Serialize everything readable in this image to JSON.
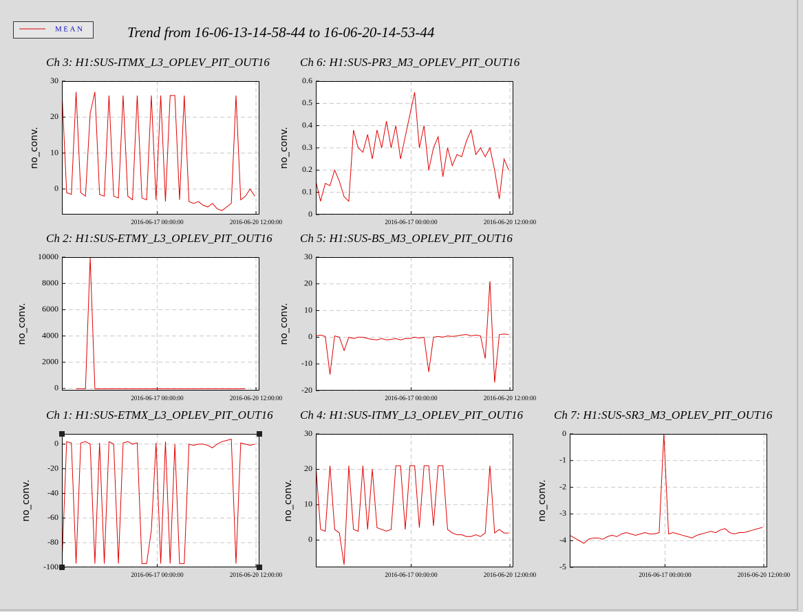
{
  "title": "Trend from 16-06-13-14-58-44 to 16-06-20-14-53-44",
  "chart_data": [
    {
      "type": "line",
      "title": "Ch 3: H1:SUS-ITMX_L3_OPLEV_PIT_OUT16",
      "ylabel": "no_conv.",
      "x": [
        "2016-06-13 15:00:00",
        "2016-06-13 19:00:00",
        "2016-06-13 23:00:00",
        "2016-06-14 03:00:00",
        "2016-06-14 07:00:00",
        "2016-06-14 11:00:00",
        "2016-06-14 15:00:00",
        "2016-06-14 19:00:00",
        "2016-06-14 23:00:00",
        "2016-06-15 03:00:00",
        "2016-06-15 07:00:00",
        "2016-06-15 11:00:00",
        "2016-06-15 15:00:00",
        "2016-06-15 19:00:00",
        "2016-06-15 23:00:00",
        "2016-06-16 03:00:00",
        "2016-06-16 07:00:00",
        "2016-06-16 11:00:00",
        "2016-06-16 15:00:00",
        "2016-06-16 19:00:00",
        "2016-06-16 23:00:00",
        "2016-06-17 03:00:00",
        "2016-06-17 07:00:00",
        "2016-06-17 11:00:00",
        "2016-06-17 15:00:00",
        "2016-06-17 19:00:00",
        "2016-06-17 23:00:00",
        "2016-06-18 03:00:00",
        "2016-06-18 07:00:00",
        "2016-06-18 11:00:00",
        "2016-06-18 15:00:00",
        "2016-06-18 19:00:00",
        "2016-06-18 23:00:00",
        "2016-06-19 03:00:00",
        "2016-06-19 07:00:00",
        "2016-06-19 11:00:00",
        "2016-06-19 15:00:00",
        "2016-06-19 19:00:00",
        "2016-06-19 23:00:00",
        "2016-06-20 03:00:00",
        "2016-06-20 07:00:00",
        "2016-06-20 11:00:00"
      ],
      "series": [
        {
          "name": "MEAN",
          "color": "#e00000",
          "values": [
            27,
            -1,
            -1.5,
            27,
            -1,
            -2,
            21,
            27,
            -1.5,
            -2,
            26,
            -2,
            -2.5,
            26,
            -2,
            -3,
            26,
            -2.5,
            -3,
            26,
            -3,
            26,
            -3.5,
            26,
            26,
            -3,
            26,
            -3.5,
            -4,
            -3.5,
            -4.5,
            -5,
            -4,
            -5.5,
            -6,
            -5,
            -4,
            26,
            -3,
            -2,
            0,
            -2
          ]
        }
      ],
      "xlim": [
        "2016-06-13 14:58:44",
        "2016-06-20 14:53:44"
      ],
      "xticks": [
        "2016-06-17 00:00:00",
        "2016-06-20 12:00:00"
      ],
      "ylim": [
        -7.1,
        30
      ],
      "yticks": [
        0,
        10,
        20,
        30
      ],
      "grid": true
    },
    {
      "type": "line",
      "title": "Ch 6: H1:SUS-PR3_M3_OPLEV_PIT_OUT16",
      "ylabel": "no_conv.",
      "x": [
        "2016-06-13 15:00:00",
        "2016-06-13 19:00:00",
        "2016-06-13 23:00:00",
        "2016-06-14 03:00:00",
        "2016-06-14 07:00:00",
        "2016-06-14 11:00:00",
        "2016-06-14 15:00:00",
        "2016-06-14 19:00:00",
        "2016-06-14 23:00:00",
        "2016-06-15 03:00:00",
        "2016-06-15 07:00:00",
        "2016-06-15 11:00:00",
        "2016-06-15 15:00:00",
        "2016-06-15 19:00:00",
        "2016-06-15 23:00:00",
        "2016-06-16 03:00:00",
        "2016-06-16 07:00:00",
        "2016-06-16 11:00:00",
        "2016-06-16 15:00:00",
        "2016-06-16 19:00:00",
        "2016-06-16 23:00:00",
        "2016-06-17 03:00:00",
        "2016-06-17 07:00:00",
        "2016-06-17 11:00:00",
        "2016-06-17 15:00:00",
        "2016-06-17 19:00:00",
        "2016-06-17 23:00:00",
        "2016-06-18 03:00:00",
        "2016-06-18 07:00:00",
        "2016-06-18 11:00:00",
        "2016-06-18 15:00:00",
        "2016-06-18 19:00:00",
        "2016-06-18 23:00:00",
        "2016-06-19 03:00:00",
        "2016-06-19 07:00:00",
        "2016-06-19 11:00:00",
        "2016-06-19 15:00:00",
        "2016-06-19 19:00:00",
        "2016-06-19 23:00:00",
        "2016-06-20 03:00:00",
        "2016-06-20 07:00:00",
        "2016-06-20 11:00:00"
      ],
      "series": [
        {
          "name": "MEAN",
          "color": "#e00000",
          "values": [
            0.15,
            0.06,
            0.14,
            0.13,
            0.2,
            0.15,
            0.08,
            0.06,
            0.38,
            0.3,
            0.28,
            0.36,
            0.25,
            0.38,
            0.3,
            0.42,
            0.3,
            0.4,
            0.25,
            0.35,
            0.45,
            0.55,
            0.3,
            0.4,
            0.2,
            0.3,
            0.35,
            0.17,
            0.3,
            0.22,
            0.27,
            0.26,
            0.33,
            0.38,
            0.27,
            0.3,
            0.26,
            0.3,
            0.2,
            0.07,
            0.25,
            0.2
          ]
        }
      ],
      "xlim": [
        "2016-06-13 14:58:44",
        "2016-06-20 14:53:44"
      ],
      "xticks": [
        "2016-06-17 00:00:00",
        "2016-06-20 12:00:00"
      ],
      "ylim": [
        0,
        0.6
      ],
      "yticks": [
        0,
        0.1,
        0.2,
        0.3,
        0.4,
        0.5,
        0.6
      ],
      "grid": true
    },
    {
      "type": "line",
      "title": "Ch 2: H1:SUS-ETMY_L3_OPLEV_PIT_OUT16",
      "ylabel": "no_conv.",
      "x": [
        "2016-06-13 15:00:00",
        "2016-06-13 19:00:00",
        "2016-06-13 23:00:00",
        "2016-06-14 03:00:00",
        "2016-06-14 07:00:00",
        "2016-06-14 11:00:00",
        "2016-06-14 15:00:00",
        "2016-06-14 19:00:00",
        "2016-06-14 23:00:00",
        "2016-06-15 03:00:00",
        "2016-06-15 07:00:00",
        "2016-06-15 11:00:00",
        "2016-06-15 15:00:00",
        "2016-06-15 19:00:00",
        "2016-06-15 23:00:00",
        "2016-06-16 03:00:00",
        "2016-06-16 07:00:00",
        "2016-06-16 11:00:00",
        "2016-06-16 15:00:00",
        "2016-06-16 19:00:00",
        "2016-06-16 23:00:00",
        "2016-06-17 03:00:00",
        "2016-06-17 07:00:00",
        "2016-06-17 11:00:00",
        "2016-06-17 15:00:00",
        "2016-06-17 19:00:00",
        "2016-06-17 23:00:00",
        "2016-06-18 03:00:00",
        "2016-06-18 07:00:00",
        "2016-06-18 11:00:00",
        "2016-06-18 15:00:00",
        "2016-06-18 19:00:00",
        "2016-06-18 23:00:00",
        "2016-06-19 03:00:00",
        "2016-06-19 07:00:00",
        "2016-06-19 11:00:00",
        "2016-06-19 15:00:00",
        "2016-06-19 19:00:00",
        "2016-06-19 23:00:00",
        "2016-06-20 03:00:00",
        "2016-06-20 07:00:00",
        "2016-06-20 11:00:00"
      ],
      "series": [
        {
          "name": "MEAN",
          "color": "#e00000",
          "values": [
            null,
            null,
            null,
            -20,
            -20,
            -20,
            10000,
            -30,
            -30,
            -30,
            -30,
            -30,
            -30,
            -30,
            -30,
            -30,
            -30,
            -30,
            -30,
            -30,
            -30,
            -30,
            -30,
            -30,
            -30,
            -30,
            -30,
            -30,
            -30,
            -30,
            -30,
            -30,
            -30,
            -30,
            -30,
            -30,
            -30,
            -30,
            -30,
            -20,
            null,
            null
          ]
        }
      ],
      "xlim": [
        "2016-06-13 14:58:44",
        "2016-06-20 14:53:44"
      ],
      "xticks": [
        "2016-06-17 00:00:00",
        "2016-06-20 12:00:00"
      ],
      "ylim": [
        -158,
        10000
      ],
      "yticks": [
        0,
        2000,
        4000,
        6000,
        8000,
        10000
      ],
      "grid": true
    },
    {
      "type": "line",
      "title": "Ch 5: H1:SUS-BS_M3_OPLEV_PIT_OUT16",
      "ylabel": "no_conv.",
      "x": [
        "2016-06-13 15:00:00",
        "2016-06-13 19:00:00",
        "2016-06-13 23:00:00",
        "2016-06-14 03:00:00",
        "2016-06-14 07:00:00",
        "2016-06-14 11:00:00",
        "2016-06-14 15:00:00",
        "2016-06-14 19:00:00",
        "2016-06-14 23:00:00",
        "2016-06-15 03:00:00",
        "2016-06-15 07:00:00",
        "2016-06-15 11:00:00",
        "2016-06-15 15:00:00",
        "2016-06-15 19:00:00",
        "2016-06-15 23:00:00",
        "2016-06-16 03:00:00",
        "2016-06-16 07:00:00",
        "2016-06-16 11:00:00",
        "2016-06-16 15:00:00",
        "2016-06-16 19:00:00",
        "2016-06-16 23:00:00",
        "2016-06-17 03:00:00",
        "2016-06-17 07:00:00",
        "2016-06-17 11:00:00",
        "2016-06-17 15:00:00",
        "2016-06-17 19:00:00",
        "2016-06-17 23:00:00",
        "2016-06-18 03:00:00",
        "2016-06-18 07:00:00",
        "2016-06-18 11:00:00",
        "2016-06-18 15:00:00",
        "2016-06-18 19:00:00",
        "2016-06-18 23:00:00",
        "2016-06-19 03:00:00",
        "2016-06-19 07:00:00",
        "2016-06-19 11:00:00",
        "2016-06-19 15:00:00",
        "2016-06-19 19:00:00",
        "2016-06-19 23:00:00",
        "2016-06-20 03:00:00",
        "2016-06-20 07:00:00",
        "2016-06-20 11:00:00"
      ],
      "series": [
        {
          "name": "MEAN",
          "color": "#e00000",
          "values": [
            0.5,
            0.8,
            0.3,
            -14,
            0.5,
            0,
            -5,
            0,
            -0.5,
            0,
            0,
            -0.5,
            -0.8,
            -1,
            -0.5,
            -1,
            -0.8,
            -0.5,
            -1,
            -0.5,
            -0.5,
            0,
            -0.3,
            0,
            -13,
            0,
            0.3,
            0,
            0.5,
            0.3,
            0.5,
            0.8,
            1,
            0.5,
            0.8,
            0.5,
            -8,
            21,
            -17,
            1,
            1.2,
            1
          ]
        }
      ],
      "xlim": [
        "2016-06-13 14:58:44",
        "2016-06-20 14:53:44"
      ],
      "xticks": [
        "2016-06-17 00:00:00",
        "2016-06-20 12:00:00"
      ],
      "ylim": [
        -20,
        30
      ],
      "yticks": [
        -20,
        -10,
        0,
        10,
        20,
        30
      ],
      "grid": true
    },
    {
      "type": "line",
      "title": "Ch 1: H1:SUS-ETMX_L3_OPLEV_PIT_OUT16",
      "ylabel": "no_conv.",
      "x": [
        "2016-06-13 15:00:00",
        "2016-06-13 19:00:00",
        "2016-06-13 23:00:00",
        "2016-06-14 03:00:00",
        "2016-06-14 07:00:00",
        "2016-06-14 11:00:00",
        "2016-06-14 15:00:00",
        "2016-06-14 19:00:00",
        "2016-06-14 23:00:00",
        "2016-06-15 03:00:00",
        "2016-06-15 07:00:00",
        "2016-06-15 11:00:00",
        "2016-06-15 15:00:00",
        "2016-06-15 19:00:00",
        "2016-06-15 23:00:00",
        "2016-06-16 03:00:00",
        "2016-06-16 07:00:00",
        "2016-06-16 11:00:00",
        "2016-06-16 15:00:00",
        "2016-06-16 19:00:00",
        "2016-06-16 23:00:00",
        "2016-06-17 03:00:00",
        "2016-06-17 07:00:00",
        "2016-06-17 11:00:00",
        "2016-06-17 15:00:00",
        "2016-06-17 19:00:00",
        "2016-06-17 23:00:00",
        "2016-06-18 03:00:00",
        "2016-06-18 07:00:00",
        "2016-06-18 11:00:00",
        "2016-06-18 15:00:00",
        "2016-06-18 19:00:00",
        "2016-06-18 23:00:00",
        "2016-06-19 03:00:00",
        "2016-06-19 07:00:00",
        "2016-06-19 11:00:00",
        "2016-06-19 15:00:00",
        "2016-06-19 19:00:00",
        "2016-06-19 23:00:00",
        "2016-06-20 03:00:00",
        "2016-06-20 07:00:00",
        "2016-06-20 11:00:00"
      ],
      "series": [
        {
          "name": "MEAN",
          "color": "#e00000",
          "values": [
            -97,
            2,
            1,
            -97,
            1,
            2,
            0,
            -97,
            1,
            -97,
            2,
            0,
            -97,
            1,
            2,
            0,
            1,
            -97,
            -97,
            -70,
            1,
            -97,
            2,
            -97,
            0,
            -97,
            -97,
            0,
            -1,
            0,
            0,
            -1,
            -3,
            0,
            2,
            3,
            4,
            -97,
            1,
            0,
            -1,
            0
          ]
        }
      ],
      "xlim": [
        "2016-06-13 14:58:44",
        "2016-06-20 14:53:44"
      ],
      "xticks": [
        "2016-06-17 00:00:00",
        "2016-06-20 12:00:00"
      ],
      "ylim": [
        -100,
        8.3
      ],
      "yticks": [
        -100,
        -80,
        -60,
        -40,
        -20,
        0
      ],
      "grid": true
    },
    {
      "type": "line",
      "title": "Ch 4: H1:SUS-ITMY_L3_OPLEV_PIT_OUT16",
      "ylabel": "no_conv.",
      "x": [
        "2016-06-13 15:00:00",
        "2016-06-13 19:00:00",
        "2016-06-13 23:00:00",
        "2016-06-14 03:00:00",
        "2016-06-14 07:00:00",
        "2016-06-14 11:00:00",
        "2016-06-14 15:00:00",
        "2016-06-14 19:00:00",
        "2016-06-14 23:00:00",
        "2016-06-15 03:00:00",
        "2016-06-15 07:00:00",
        "2016-06-15 11:00:00",
        "2016-06-15 15:00:00",
        "2016-06-15 19:00:00",
        "2016-06-15 23:00:00",
        "2016-06-16 03:00:00",
        "2016-06-16 07:00:00",
        "2016-06-16 11:00:00",
        "2016-06-16 15:00:00",
        "2016-06-16 19:00:00",
        "2016-06-16 23:00:00",
        "2016-06-17 03:00:00",
        "2016-06-17 07:00:00",
        "2016-06-17 11:00:00",
        "2016-06-17 15:00:00",
        "2016-06-17 19:00:00",
        "2016-06-17 23:00:00",
        "2016-06-18 03:00:00",
        "2016-06-18 07:00:00",
        "2016-06-18 11:00:00",
        "2016-06-18 15:00:00",
        "2016-06-18 19:00:00",
        "2016-06-18 23:00:00",
        "2016-06-19 03:00:00",
        "2016-06-19 07:00:00",
        "2016-06-19 11:00:00",
        "2016-06-19 15:00:00",
        "2016-06-19 19:00:00",
        "2016-06-19 23:00:00",
        "2016-06-20 03:00:00",
        "2016-06-20 07:00:00",
        "2016-06-20 11:00:00"
      ],
      "series": [
        {
          "name": "MEAN",
          "color": "#e00000",
          "values": [
            21,
            3,
            2.5,
            21,
            3,
            2,
            -7,
            21,
            3,
            2.5,
            21,
            3,
            20,
            3.5,
            3,
            2.5,
            3,
            21,
            21,
            3,
            21,
            21,
            3.5,
            21,
            21,
            4,
            21,
            21,
            3,
            2,
            1.5,
            1.5,
            1,
            1,
            1.5,
            1,
            2,
            21,
            2,
            3,
            2,
            2
          ]
        }
      ],
      "xlim": [
        "2016-06-13 14:58:44",
        "2016-06-20 14:53:44"
      ],
      "xticks": [
        "2016-06-17 00:00:00",
        "2016-06-20 12:00:00"
      ],
      "ylim": [
        -7.7,
        30
      ],
      "yticks": [
        0,
        10,
        20,
        30
      ],
      "grid": true
    },
    {
      "type": "line",
      "title": "Ch 7: H1:SUS-SR3_M3_OPLEV_PIT_OUT16",
      "ylabel": "no_conv.",
      "x": [
        "2016-06-13 15:00:00",
        "2016-06-13 19:00:00",
        "2016-06-13 23:00:00",
        "2016-06-14 03:00:00",
        "2016-06-14 07:00:00",
        "2016-06-14 11:00:00",
        "2016-06-14 15:00:00",
        "2016-06-14 19:00:00",
        "2016-06-14 23:00:00",
        "2016-06-15 03:00:00",
        "2016-06-15 07:00:00",
        "2016-06-15 11:00:00",
        "2016-06-15 15:00:00",
        "2016-06-15 19:00:00",
        "2016-06-15 23:00:00",
        "2016-06-16 03:00:00",
        "2016-06-16 07:00:00",
        "2016-06-16 11:00:00",
        "2016-06-16 15:00:00",
        "2016-06-16 19:00:00",
        "2016-06-16 23:00:00",
        "2016-06-17 03:00:00",
        "2016-06-17 07:00:00",
        "2016-06-17 11:00:00",
        "2016-06-17 15:00:00",
        "2016-06-17 19:00:00",
        "2016-06-17 23:00:00",
        "2016-06-18 03:00:00",
        "2016-06-18 07:00:00",
        "2016-06-18 11:00:00",
        "2016-06-18 15:00:00",
        "2016-06-18 19:00:00",
        "2016-06-18 23:00:00",
        "2016-06-19 03:00:00",
        "2016-06-19 07:00:00",
        "2016-06-19 11:00:00",
        "2016-06-19 15:00:00",
        "2016-06-19 19:00:00",
        "2016-06-19 23:00:00",
        "2016-06-20 03:00:00",
        "2016-06-20 07:00:00",
        "2016-06-20 11:00:00"
      ],
      "series": [
        {
          "name": "MEAN",
          "color": "#e00000",
          "values": [
            -3.8,
            -3.9,
            -4,
            -4.1,
            -3.95,
            -3.9,
            -3.9,
            -3.95,
            -3.85,
            -3.8,
            -3.85,
            -3.75,
            -3.7,
            -3.75,
            -3.8,
            -3.75,
            -3.7,
            -3.75,
            -3.75,
            -3.7,
            0,
            -3.75,
            -3.7,
            -3.75,
            -3.8,
            -3.85,
            -3.9,
            -3.8,
            -3.75,
            -3.7,
            -3.65,
            -3.7,
            -3.6,
            -3.55,
            -3.7,
            -3.75,
            -3.7,
            -3.7,
            -3.65,
            -3.6,
            -3.55,
            -3.5
          ]
        }
      ],
      "xlim": [
        "2016-06-13 14:58:44",
        "2016-06-20 14:53:44"
      ],
      "xticks": [
        "2016-06-17 00:00:00",
        "2016-06-20 12:00:00"
      ],
      "ylim": [
        -5,
        0
      ],
      "yticks": [
        -5,
        -4,
        -3,
        -2,
        -1,
        0
      ],
      "grid": true
    }
  ]
}
